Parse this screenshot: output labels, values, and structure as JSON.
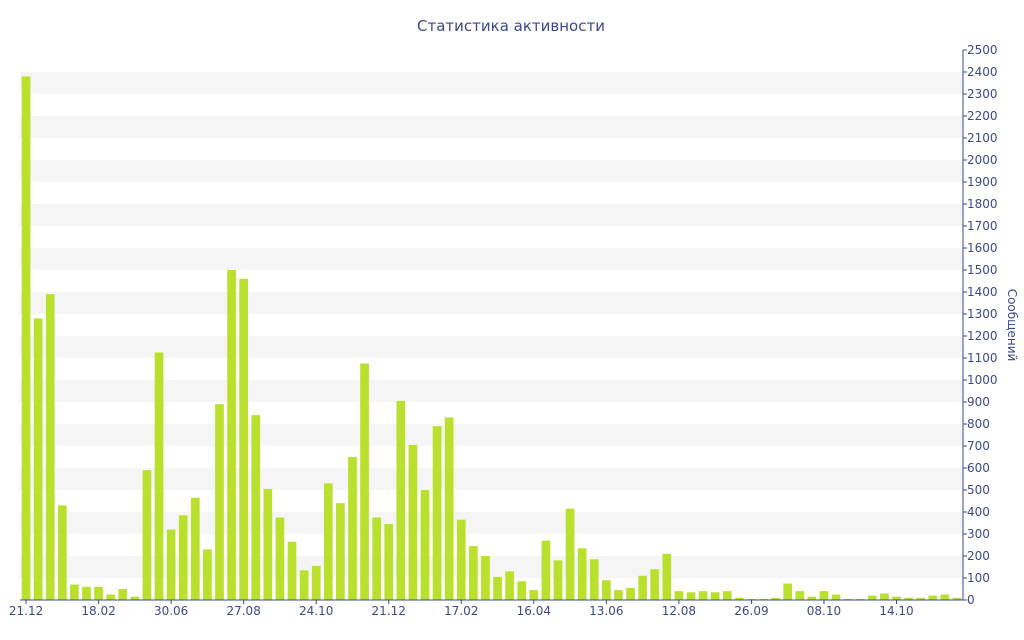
{
  "chart_data": {
    "type": "bar",
    "title": "Статистика активности",
    "ylabel": "Сообщений",
    "xlabel": "",
    "ylim": [
      0,
      2500
    ],
    "y_ticks": [
      0,
      100,
      200,
      300,
      400,
      500,
      600,
      700,
      800,
      900,
      1000,
      1100,
      1200,
      1300,
      1400,
      1500,
      1600,
      1700,
      1800,
      1900,
      2000,
      2100,
      2200,
      2300,
      2400,
      2500
    ],
    "y_axis_side": "right",
    "grid": "horizontal-bands",
    "x_tick_labels": [
      "21.12",
      "18.02",
      "30.06",
      "27.08",
      "24.10",
      "21.12",
      "17.02",
      "16.04",
      "13.06",
      "12.08",
      "26.09",
      "08.10",
      "14.10"
    ],
    "values": [
      2380,
      1280,
      1390,
      430,
      70,
      60,
      60,
      25,
      50,
      15,
      590,
      1125,
      320,
      385,
      465,
      230,
      890,
      1500,
      1460,
      840,
      505,
      375,
      265,
      135,
      155,
      530,
      440,
      650,
      1075,
      375,
      345,
      905,
      705,
      500,
      790,
      830,
      365,
      245,
      200,
      105,
      130,
      85,
      45,
      270,
      180,
      415,
      235,
      185,
      90,
      45,
      55,
      110,
      140,
      210,
      40,
      35,
      40,
      35,
      40,
      10,
      5,
      5,
      10,
      75,
      40,
      15,
      40,
      25,
      5,
      5,
      20,
      30,
      15,
      10,
      10,
      20,
      25,
      10
    ],
    "colors": {
      "bar": "#b9e02c",
      "band": "#f5f5f5",
      "text": "#3b4a8c",
      "axis": "#3b4a8c"
    }
  }
}
